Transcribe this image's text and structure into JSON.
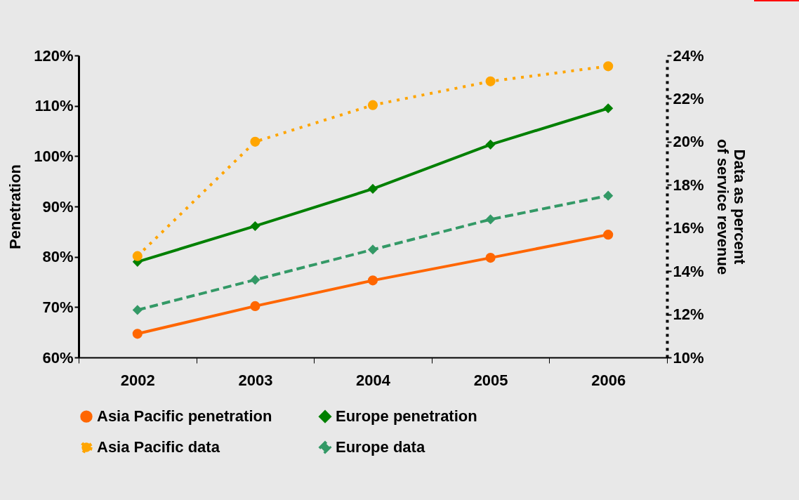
{
  "chart_data": {
    "type": "line",
    "categories": [
      "2002",
      "2003",
      "2004",
      "2005",
      "2006"
    ],
    "ylabel": "Penetration",
    "y2label": "Data as percent of service revenue",
    "ylim": [
      60,
      120
    ],
    "yticks": [
      {
        "value": 60,
        "label": "60%"
      },
      {
        "value": 70,
        "label": "70%"
      },
      {
        "value": 80,
        "label": "80%"
      },
      {
        "value": 90,
        "label": "90%"
      },
      {
        "value": 100,
        "label": "100%"
      },
      {
        "value": 110,
        "label": "110%"
      },
      {
        "value": 120,
        "label": "120%"
      }
    ],
    "y2lim": [
      10,
      24
    ],
    "y2ticks": [
      {
        "value": 10,
        "label": "10%"
      },
      {
        "value": 12,
        "label": "12%"
      },
      {
        "value": 14,
        "label": "14%"
      },
      {
        "value": 16,
        "label": "16%"
      },
      {
        "value": 18,
        "label": "18%"
      },
      {
        "value": 20,
        "label": "20%"
      },
      {
        "value": 22,
        "label": "22%"
      },
      {
        "value": 24,
        "label": "24%"
      }
    ],
    "legend": "bottom",
    "grid": false,
    "series": [
      {
        "name": "Asia Pacific penetration",
        "color": "#ff6600",
        "marker": "circle",
        "line_style": "solid",
        "values": [
          64.7,
          70.2,
          75.3,
          79.8,
          84.4
        ]
      },
      {
        "name": "Europe penetration",
        "color": "#008000",
        "marker": "diamond",
        "line_style": "solid",
        "values": [
          79.0,
          86.1,
          93.5,
          102.3,
          109.5
        ]
      },
      {
        "name": "Asia Pacific data",
        "color": "#ffa500",
        "marker": "circle",
        "line_style": "dotted",
        "axis": "y2",
        "values": [
          14.7,
          20.0,
          21.7,
          22.8,
          23.5
        ]
      },
      {
        "name": "Europe data",
        "color": "#339966",
        "marker": "diamond",
        "line_style": "dashed",
        "axis": "y2",
        "values": [
          12.2,
          13.6,
          15.0,
          16.4,
          17.5
        ]
      }
    ]
  }
}
